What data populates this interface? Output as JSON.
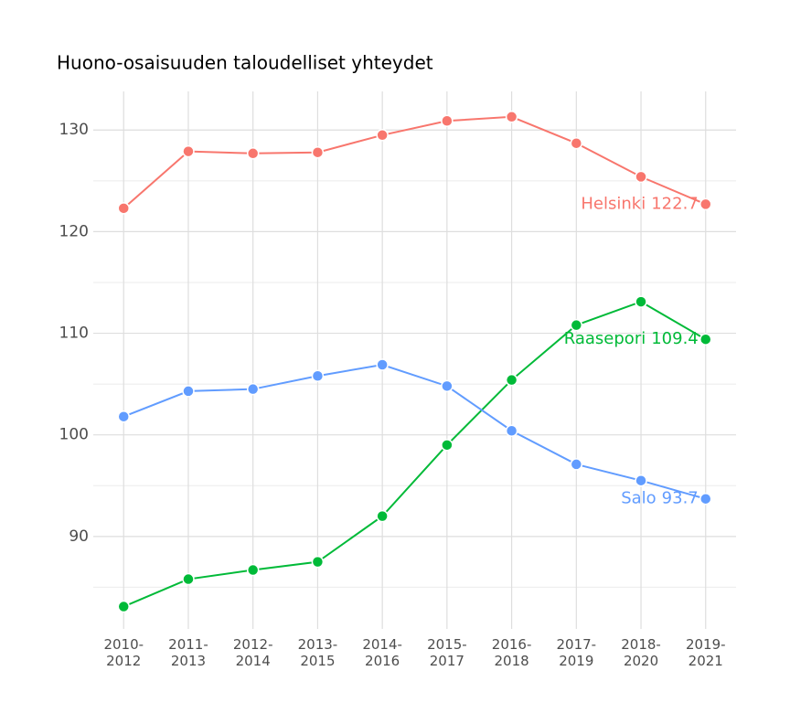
{
  "chart_data": {
    "type": "line",
    "title": "Huono-osaisuuden taloudelliset yhteydet",
    "categories": [
      "2010-2012",
      "2011-2013",
      "2012-2014",
      "2013-2015",
      "2014-2016",
      "2015-2017",
      "2016-2018",
      "2017-2019",
      "2018-2020",
      "2019-2021"
    ],
    "series": [
      {
        "name": "Helsinki",
        "color": "#f8766d",
        "values": [
          122.3,
          127.9,
          127.7,
          127.8,
          129.5,
          130.9,
          131.3,
          128.7,
          125.4,
          122.7
        ]
      },
      {
        "name": "Raasepori",
        "color": "#00ba38",
        "values": [
          83.1,
          85.8,
          86.7,
          87.5,
          92.0,
          99.0,
          105.4,
          110.8,
          113.1,
          109.4
        ]
      },
      {
        "name": "Salo",
        "color": "#619cff",
        "values": [
          101.8,
          104.3,
          104.5,
          105.8,
          106.9,
          104.8,
          100.4,
          97.1,
          95.5,
          93.7
        ]
      }
    ],
    "ylim": [
      80.9,
      133.8
    ],
    "yticks": [
      90,
      100,
      110,
      120,
      130
    ],
    "minor_yticks": [
      85,
      95,
      105,
      115,
      125
    ],
    "grid": true
  }
}
